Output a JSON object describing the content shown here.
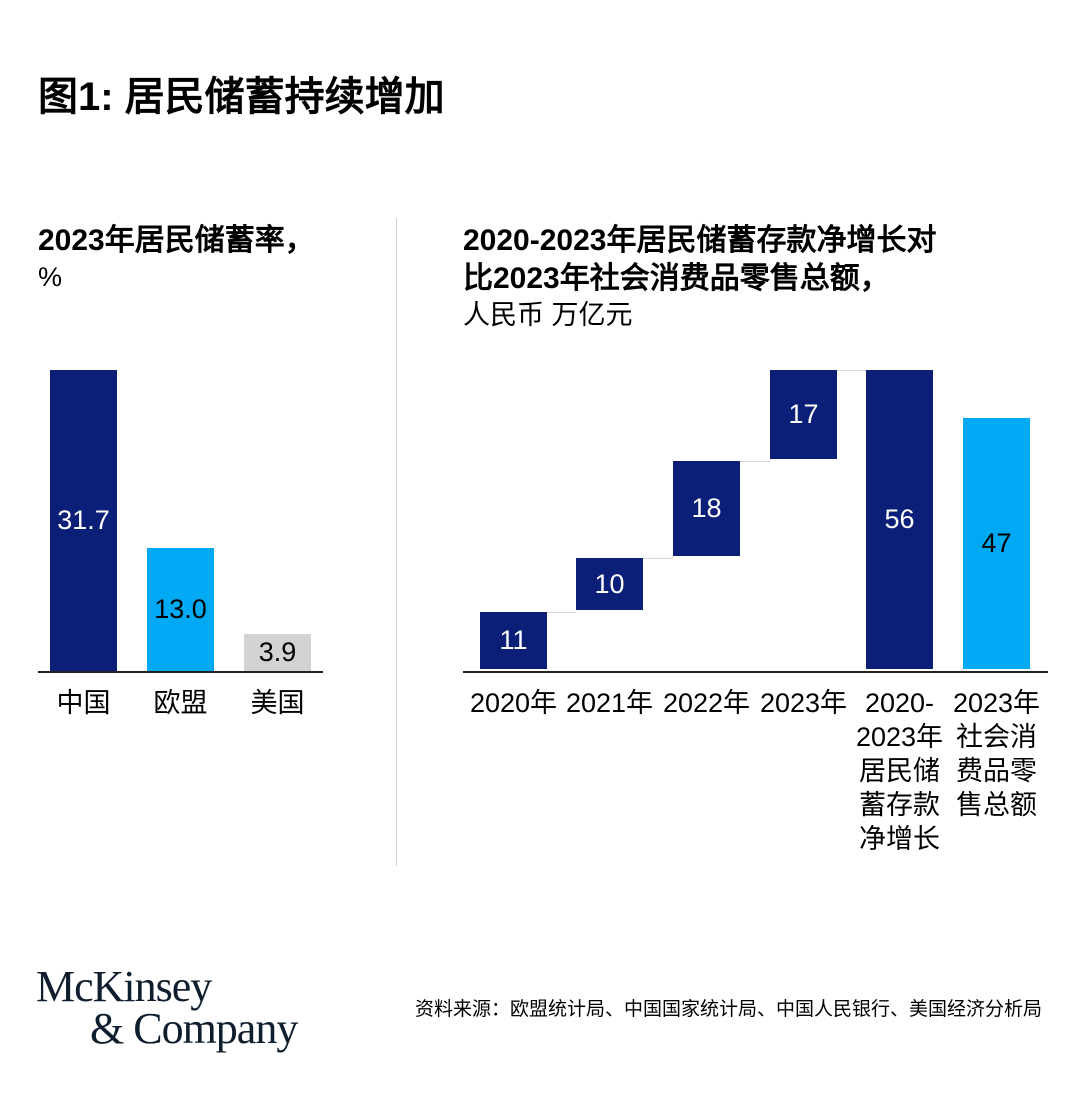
{
  "title": "图1: 居民储蓄持续增加",
  "colors": {
    "navy": "#0b1f78",
    "light_blue": "#00a9f4",
    "gray": "#d3d3d3"
  },
  "chart_data": [
    {
      "type": "bar",
      "title": "2023年居民储蓄率，",
      "unit": "%",
      "categories": [
        "中国",
        "欧盟",
        "美国"
      ],
      "values": [
        31.7,
        13.0,
        3.9
      ],
      "value_labels": [
        "31.7",
        "13.0",
        "3.9"
      ],
      "bar_colors": [
        "#0b1f78",
        "#00a9f4",
        "#d3d3d3"
      ],
      "label_colors": [
        "#ffffff",
        "#000000",
        "#000000"
      ],
      "ylim": [
        0,
        31.7
      ]
    },
    {
      "type": "waterfall",
      "title_line1": "2020-2023年居民储蓄存款净增长对",
      "title_line2": "比2023年社会消费品零售总额，",
      "unit": "人民币 万亿元",
      "categories": [
        "2020年",
        "2021年",
        "2022年",
        "2023年",
        "2020-\n2023年\n居民储\n蓄存款\n净增长",
        "2023年\n社会消\n费品零\n售总额"
      ],
      "values": [
        11,
        10,
        18,
        17,
        56,
        47
      ],
      "value_labels": [
        "11",
        "10",
        "18",
        "17",
        "56",
        "47"
      ],
      "kinds": [
        "increment",
        "increment",
        "increment",
        "increment",
        "total",
        "total"
      ],
      "bar_colors": [
        "#0b1f78",
        "#0b1f78",
        "#0b1f78",
        "#0b1f78",
        "#0b1f78",
        "#00a9f4"
      ],
      "ylim": [
        0,
        56
      ]
    }
  ],
  "footer": {
    "logo_line1": "McKinsey",
    "logo_line2": "& Company",
    "source": "资料来源：欧盟统计局、中国国家统计局、中国人民银行、美国经济分析局"
  }
}
